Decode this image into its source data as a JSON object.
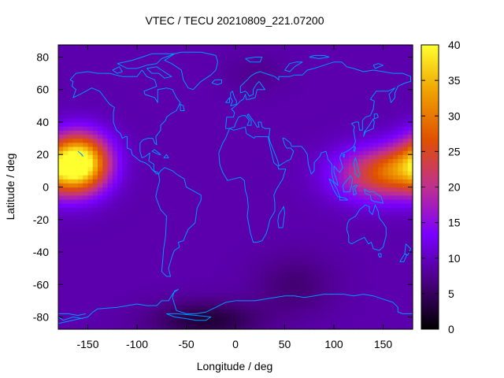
{
  "chart_data": {
    "type": "heatmap",
    "title": "VTEC / TECU 20210809_221.07200",
    "xlabel": "Longitude / deg",
    "ylabel": "Latitude / deg",
    "xlim": [
      -180,
      180
    ],
    "ylim": [
      -87.5,
      87.5
    ],
    "x_ticks": [
      -150,
      -100,
      -50,
      0,
      50,
      100,
      150
    ],
    "y_ticks": [
      -80,
      -60,
      -40,
      -20,
      0,
      20,
      40,
      60,
      80
    ],
    "colorbar": {
      "range": [
        0,
        40
      ],
      "ticks": [
        0,
        5,
        10,
        15,
        20,
        25,
        30,
        35,
        40
      ],
      "colormap": [
        "#000000",
        "#4a0080",
        "#7a00ff",
        "#c03090",
        "#e05000",
        "#f0a000",
        "#ffff30"
      ]
    },
    "coastline_color": "#0096ff",
    "grid": false,
    "field_features": [
      {
        "lon": -160,
        "lat": 15,
        "value": 35,
        "lon_spread": 30,
        "lat_spread": 17
      },
      {
        "lon": 145,
        "lat": 8,
        "value": 15,
        "lon_spread": 45,
        "lat_spread": 16
      },
      {
        "lon": 160,
        "lat": 12,
        "value": 5,
        "lon_spread": 22,
        "lat_spread": 12
      },
      {
        "lon": -30,
        "lat": -82,
        "value": -6,
        "lon_spread": 55,
        "lat_spread": 12
      },
      {
        "lon": 60,
        "lat": -60,
        "value": -3,
        "lon_spread": 40,
        "lat_spread": 18
      },
      {
        "lon": 20,
        "lat": 70,
        "value": -1.5,
        "lon_spread": 30,
        "lat_spread": 12
      }
    ],
    "background_value": 9
  }
}
